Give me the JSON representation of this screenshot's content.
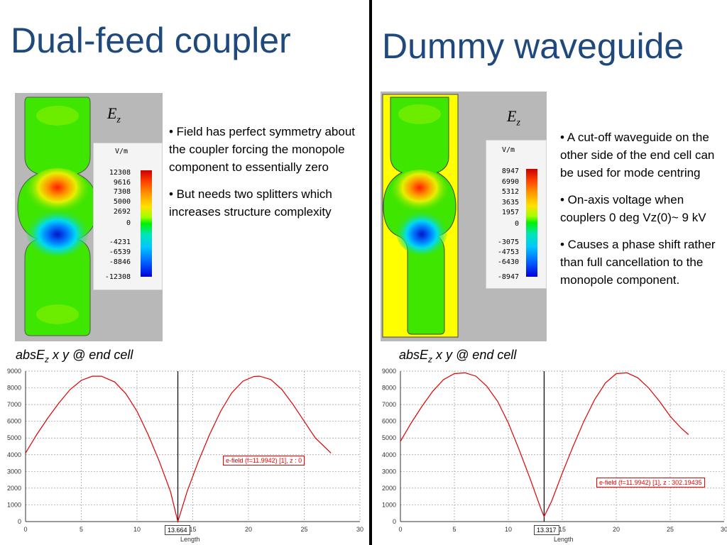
{
  "left": {
    "title": "Dual-feed coupler",
    "ez_symbol": "E",
    "ez_sub": "z",
    "legend": {
      "unit": "V/m",
      "values": [
        "12308",
        "9616",
        "7308",
        "5000",
        "2692",
        "0",
        "-4231",
        "-6539",
        "-8846",
        "-12308"
      ]
    },
    "bullets": [
      "• Field has perfect symmetry about the coupler forcing the monopole component to essentially zero",
      "• But needs two splitters which increases structure complexity"
    ],
    "plot_title": {
      "main": "absE",
      "sub": "z",
      "rest": " x  y @ end cell"
    },
    "plot": {
      "annotation": "e-field (f=11.9942) [1], z : 0",
      "cursor": "13.664",
      "xlabel": "Length"
    }
  },
  "right": {
    "title": "Dummy waveguide",
    "ez_symbol": "E",
    "ez_sub": "z",
    "legend": {
      "unit": "V/m",
      "values": [
        "8947",
        "6990",
        "5312",
        "3635",
        "1957",
        "0",
        "-3075",
        "-4753",
        "-6430",
        "-8947"
      ]
    },
    "bullets": [
      "• A cut-off waveguide on the other side of the end cell can be used for mode centring",
      "• On-axis voltage when couplers 0 deg Vz(0)~ 9 kV",
      "• Causes a phase shift rather than full cancellation to the monopole component."
    ],
    "plot_title": {
      "main": "absE",
      "sub": "z",
      "rest": " x  y @ end cell"
    },
    "plot": {
      "annotation": "e-field (f=11.9942) [1], z : 302.19435",
      "cursor": "13.317",
      "xlabel": "Length"
    }
  },
  "colors": {
    "title": "#1f497d",
    "curve": "#e00000",
    "sim_background": "#b8b8b8",
    "waveguide_fill": "#ffff00"
  },
  "chart_data": [
    {
      "type": "line",
      "series": [
        {
          "x": [
            0,
            1,
            2,
            3,
            4,
            5,
            6,
            6.8,
            8,
            9,
            10,
            11,
            12,
            13,
            13.664,
            14.5,
            15.5,
            16.5,
            17.5,
            18.5,
            19.5,
            20.5,
            21,
            22,
            23,
            24,
            25,
            26,
            27.4
          ],
          "y": [
            4100,
            5200,
            6200,
            7100,
            7900,
            8450,
            8700,
            8700,
            8350,
            7650,
            6600,
            5200,
            3600,
            1800,
            0,
            1800,
            3600,
            5200,
            6600,
            7700,
            8400,
            8680,
            8700,
            8500,
            7900,
            7000,
            6000,
            5000,
            4100
          ]
        }
      ],
      "xlabel": "Length",
      "xlim": [
        0,
        30
      ],
      "ylim": [
        0,
        9000
      ],
      "xticks": [
        0,
        5,
        10,
        15,
        20,
        25,
        30
      ],
      "yticks": [
        0,
        1000,
        2000,
        3000,
        4000,
        5000,
        6000,
        7000,
        8000,
        9000
      ],
      "cursor_x": 13.664,
      "grid": true
    },
    {
      "type": "line",
      "series": [
        {
          "x": [
            0,
            1,
            2,
            3,
            4,
            5,
            6,
            7,
            8,
            9,
            10,
            11,
            12,
            13,
            13.317,
            14,
            15,
            16,
            17,
            18,
            19,
            20,
            21,
            22,
            23,
            24,
            25,
            26,
            26.7
          ],
          "y": [
            4800,
            5900,
            6900,
            7800,
            8500,
            8850,
            8900,
            8700,
            8100,
            7200,
            5900,
            4300,
            2600,
            800,
            300,
            1200,
            2900,
            4500,
            6000,
            7300,
            8300,
            8850,
            8900,
            8600,
            8000,
            7200,
            6300,
            5600,
            5200
          ]
        }
      ],
      "xlabel": "Length",
      "xlim": [
        0,
        30
      ],
      "ylim": [
        0,
        9000
      ],
      "xticks": [
        0,
        5,
        10,
        15,
        20,
        25,
        30
      ],
      "yticks": [
        0,
        1000,
        2000,
        3000,
        4000,
        5000,
        6000,
        7000,
        8000,
        9000
      ],
      "cursor_x": 13.317,
      "grid": true
    }
  ]
}
